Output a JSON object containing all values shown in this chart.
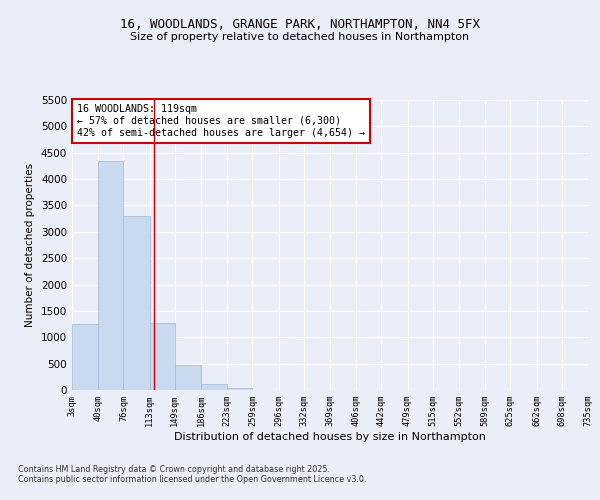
{
  "title1": "16, WOODLANDS, GRANGE PARK, NORTHAMPTON, NN4 5FX",
  "title2": "Size of property relative to detached houses in Northampton",
  "xlabel": "Distribution of detached houses by size in Northampton",
  "ylabel": "Number of detached properties",
  "footnote1": "Contains HM Land Registry data © Crown copyright and database right 2025.",
  "footnote2": "Contains public sector information licensed under the Open Government Licence v3.0.",
  "annotation_line1": "16 WOODLANDS: 119sqm",
  "annotation_line2": "← 57% of detached houses are smaller (6,300)",
  "annotation_line3": "42% of semi-detached houses are larger (4,654) →",
  "property_size": 119,
  "bin_edges": [
    3,
    40,
    76,
    113,
    149,
    186,
    223,
    259,
    296,
    332,
    369,
    406,
    442,
    479,
    515,
    552,
    589,
    625,
    662,
    698,
    735
  ],
  "bar_heights": [
    1250,
    4350,
    3300,
    1270,
    480,
    120,
    30,
    0,
    0,
    0,
    0,
    0,
    0,
    0,
    0,
    0,
    0,
    0,
    0,
    0
  ],
  "bar_color": "#c8d9f0",
  "bar_edge_color": "#a0b8d8",
  "vline_color": "#cc0000",
  "vline_x": 119,
  "ylim": [
    0,
    5500
  ],
  "yticks": [
    0,
    500,
    1000,
    1500,
    2000,
    2500,
    3000,
    3500,
    4000,
    4500,
    5000,
    5500
  ],
  "background_color": "#eaeff7",
  "axes_background": "#eaeff7",
  "grid_color": "#ffffff",
  "annotation_box_color": "#cc0000"
}
